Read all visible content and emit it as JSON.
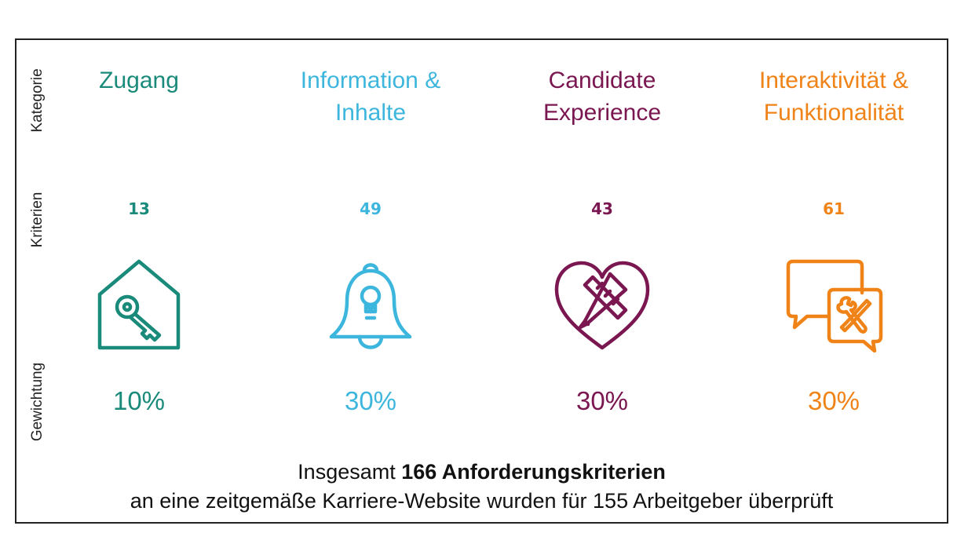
{
  "row_labels": {
    "category": "Kategorie",
    "criteria": "Kriterien",
    "weight": "Gewichtung"
  },
  "columns": [
    {
      "title": [
        "Zugang"
      ],
      "count": "13",
      "weight": "10%",
      "color": "#1a8a7a",
      "icon": "house-key-icon"
    },
    {
      "title": [
        "Information &",
        "Inhalte"
      ],
      "count": "49",
      "weight": "30%",
      "color": "#3db6dd",
      "icon": "bell-bulb-icon"
    },
    {
      "title": [
        "Candidate",
        "Experience"
      ],
      "count": "43",
      "weight": "30%",
      "color": "#7a1650",
      "icon": "heart-tools-icon"
    },
    {
      "title": [
        "Interaktivität &",
        "Funktionalität"
      ],
      "count": "61",
      "weight": "30%",
      "color": "#f08318",
      "icon": "chat-tools-icon"
    }
  ],
  "footer": {
    "line1_prefix": "Insgesamt ",
    "line1_bold": "166 Anforderungskriterien",
    "line2": "an eine zeitgemäße Karriere-Website wurden für 155 Arbeitgeber überprüft"
  }
}
